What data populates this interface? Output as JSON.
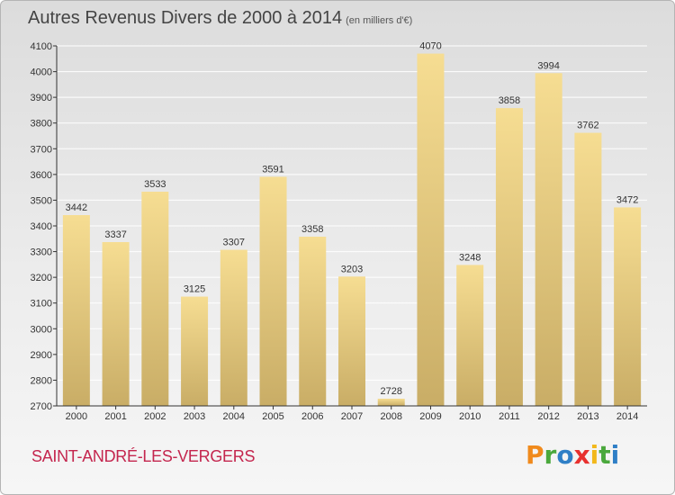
{
  "title": "Autres Revenus Divers de 2000 à 2014",
  "unit": "(en milliers d'€)",
  "commune": "SAINT-ANDRÉ-LES-VERGERS",
  "brand": {
    "letters": [
      "P",
      "r",
      "o",
      "x",
      "i",
      "t",
      "i"
    ],
    "colors": [
      "#f08a1c",
      "#4aa83c",
      "#2f7fc6",
      "#e8312f",
      "#f2b81c",
      "#4aa83c",
      "#2f7fc6"
    ]
  },
  "colors": {
    "bar_light": "#f6dd92",
    "bar_dark": "#c9ad66",
    "grid": "#ffffff",
    "axis": "#333333"
  },
  "chart_data": {
    "type": "bar",
    "categories": [
      "2000",
      "2001",
      "2002",
      "2003",
      "2004",
      "2005",
      "2006",
      "2007",
      "2008",
      "2009",
      "2010",
      "2011",
      "2012",
      "2013",
      "2014"
    ],
    "values": [
      3442,
      3337,
      3533,
      3125,
      3307,
      3591,
      3358,
      3203,
      2728,
      4070,
      3248,
      3858,
      3994,
      3762,
      3472
    ],
    "ylim": [
      2700,
      4100
    ],
    "yticks": [
      2700,
      2800,
      2900,
      3000,
      3100,
      3200,
      3300,
      3400,
      3500,
      3600,
      3700,
      3800,
      3900,
      4000,
      4100
    ],
    "data_labels": true,
    "grid": true
  }
}
